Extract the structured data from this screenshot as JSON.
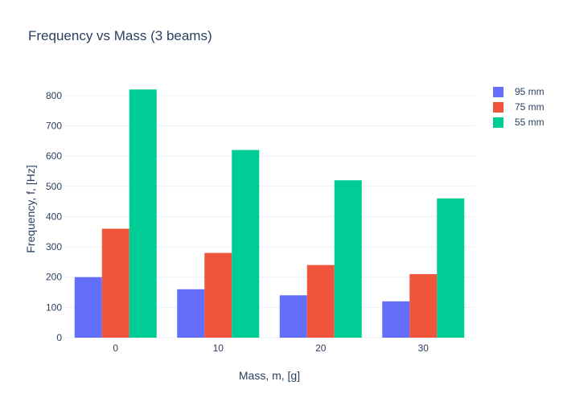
{
  "chart_data": {
    "type": "bar",
    "title": "Frequency vs Mass (3 beams)",
    "xlabel": "Mass, m, [g]",
    "ylabel": "Frequency, f, [Hz]",
    "categories": [
      "0",
      "10",
      "20",
      "30"
    ],
    "ylim": [
      0,
      850
    ],
    "yticks": [
      0,
      100,
      200,
      300,
      400,
      500,
      600,
      700,
      800
    ],
    "grid": true,
    "legend_position": "top-right",
    "series": [
      {
        "name": "95 mm",
        "color": "#636efa",
        "values": [
          200,
          160,
          140,
          120
        ]
      },
      {
        "name": "75 mm",
        "color": "#ef553b",
        "values": [
          360,
          280,
          240,
          210
        ]
      },
      {
        "name": "55 mm",
        "color": "#00cc96",
        "values": [
          820,
          620,
          520,
          460
        ]
      }
    ]
  }
}
